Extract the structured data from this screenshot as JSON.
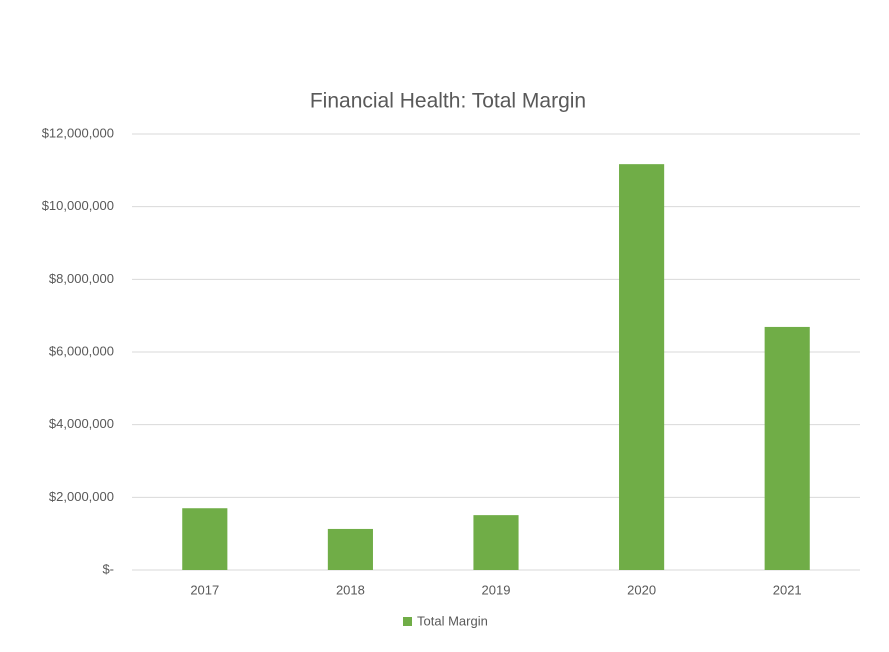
{
  "chart_data": {
    "type": "bar",
    "title": "Financial Health: Total Margin",
    "categories": [
      "2017",
      "2018",
      "2019",
      "2020",
      "2021"
    ],
    "series": [
      {
        "name": "Total Margin",
        "color": "#70ad47",
        "values": [
          1700000,
          1130000,
          1510000,
          11170000,
          6690000
        ]
      }
    ],
    "ylim": [
      0,
      12000000
    ],
    "yticks": [
      {
        "value": 0,
        "label": "$-"
      },
      {
        "value": 2000000,
        "label": "$2,000,000"
      },
      {
        "value": 4000000,
        "label": "$4,000,000"
      },
      {
        "value": 6000000,
        "label": "$6,000,000"
      },
      {
        "value": 8000000,
        "label": "$8,000,000"
      },
      {
        "value": 10000000,
        "label": "$10,000,000"
      },
      {
        "value": 12000000,
        "label": "$12,000,000"
      }
    ],
    "grid": true,
    "legend": "bottom"
  }
}
